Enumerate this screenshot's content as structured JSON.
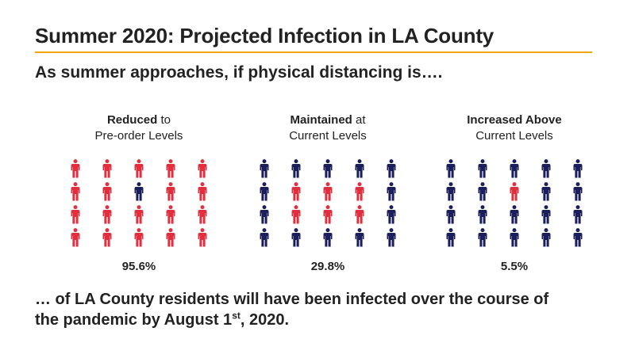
{
  "title": "Summer 2020: Projected Infection in LA County",
  "subtitle": "As summer approaches, if physical distancing is….",
  "colors": {
    "infected": "#e0303f",
    "not_infected": "#1a1f5c",
    "accent_rule": "#f0a50a"
  },
  "scenarios": [
    {
      "head_bold": "Reduced",
      "head_rest": " to",
      "head_line2": "Pre-order Levels",
      "percent": "95.6%",
      "grid": [
        [
          "infected",
          "infected",
          "infected",
          "infected",
          "infected"
        ],
        [
          "infected",
          "infected",
          "not_infected",
          "infected",
          "infected"
        ],
        [
          "infected",
          "infected",
          "infected",
          "infected",
          "infected"
        ],
        [
          "infected",
          "infected",
          "infected",
          "infected",
          "infected"
        ]
      ]
    },
    {
      "head_bold": "Maintained",
      "head_rest": " at",
      "head_line2": "Current Levels",
      "percent": "29.8%",
      "grid": [
        [
          "not_infected",
          "not_infected",
          "not_infected",
          "not_infected",
          "not_infected"
        ],
        [
          "not_infected",
          "infected",
          "infected",
          "infected",
          "not_infected"
        ],
        [
          "not_infected",
          "infected",
          "infected",
          "infected",
          "not_infected"
        ],
        [
          "not_infected",
          "not_infected",
          "not_infected",
          "not_infected",
          "not_infected"
        ]
      ]
    },
    {
      "head_bold": "Increased Above",
      "head_rest": "",
      "head_line2": "Current Levels",
      "percent": "5.5%",
      "grid": [
        [
          "not_infected",
          "not_infected",
          "not_infected",
          "not_infected",
          "not_infected"
        ],
        [
          "not_infected",
          "not_infected",
          "infected",
          "not_infected",
          "not_infected"
        ],
        [
          "not_infected",
          "not_infected",
          "not_infected",
          "not_infected",
          "not_infected"
        ],
        [
          "not_infected",
          "not_infected",
          "not_infected",
          "not_infected",
          "not_infected"
        ]
      ]
    }
  ],
  "footer": {
    "line_a": "… of LA County residents  will have been infected over the course of",
    "line_b_pre": "the pandemic by August 1",
    "line_b_sup": "st",
    "line_b_post": ", 2020."
  }
}
